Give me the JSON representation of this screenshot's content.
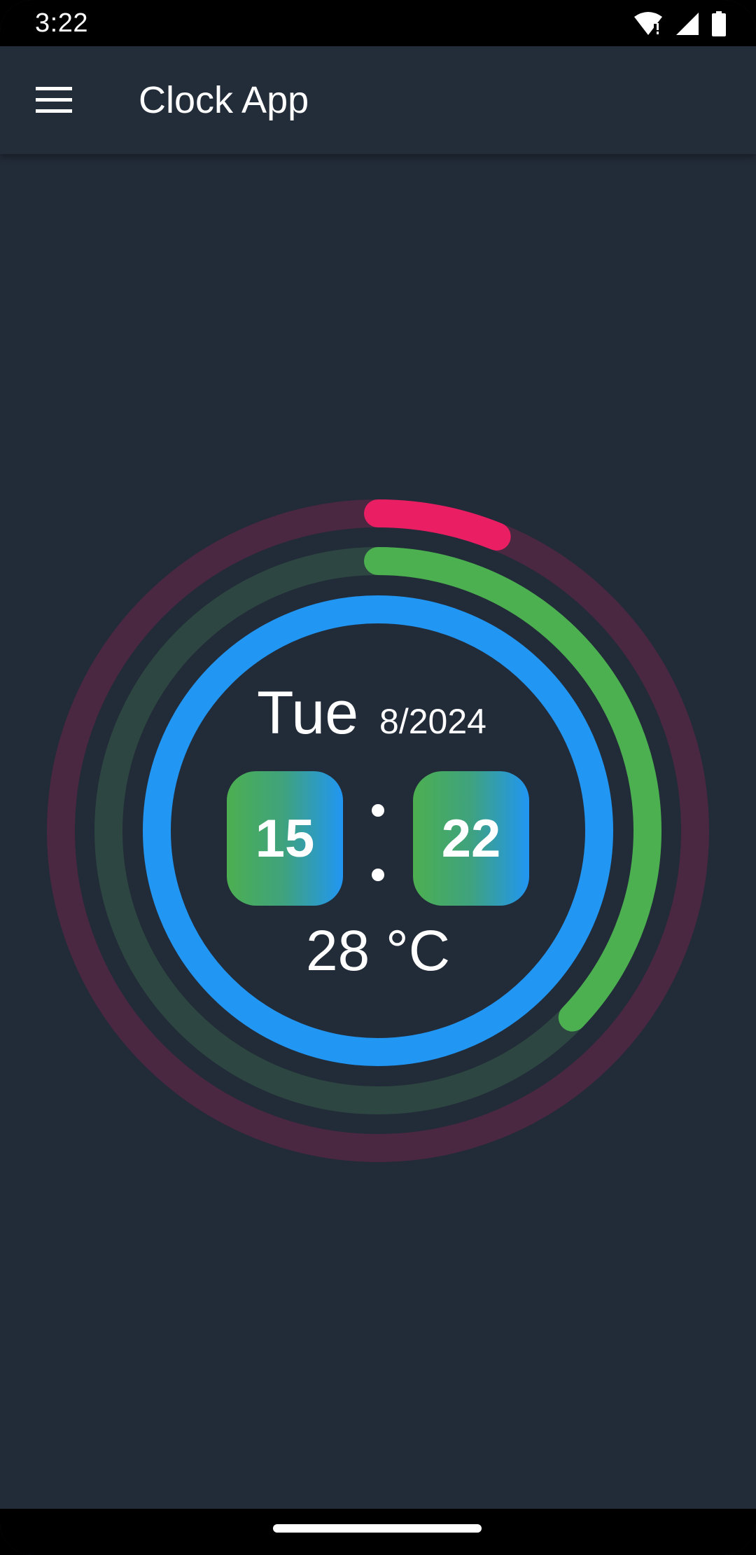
{
  "status_bar": {
    "time": "3:22",
    "icons": [
      "wifi-alert-icon",
      "cell-signal-icon",
      "battery-icon"
    ]
  },
  "app_bar": {
    "menu_icon": "hamburger-menu-icon",
    "title": "Clock App"
  },
  "clock": {
    "day": "Tue",
    "date": "8/2024",
    "hour": "15",
    "minute": "22",
    "separator": ":",
    "temperature": "28 °C",
    "rings": {
      "outer": {
        "fraction": 0.0611,
        "color": "#E91E63",
        "track_color": "#4A2841"
      },
      "middle": {
        "fraction": 0.3717,
        "color": "#4CAF50",
        "track_color": "#2D4641"
      },
      "inner": {
        "fraction": 1.0,
        "color": "#2196F3"
      }
    }
  },
  "colors": {
    "background": "#222B38",
    "app_bar": "#232C39",
    "time_box_gradient_start": "#4CAF50",
    "time_box_gradient_end": "#2196F3"
  }
}
